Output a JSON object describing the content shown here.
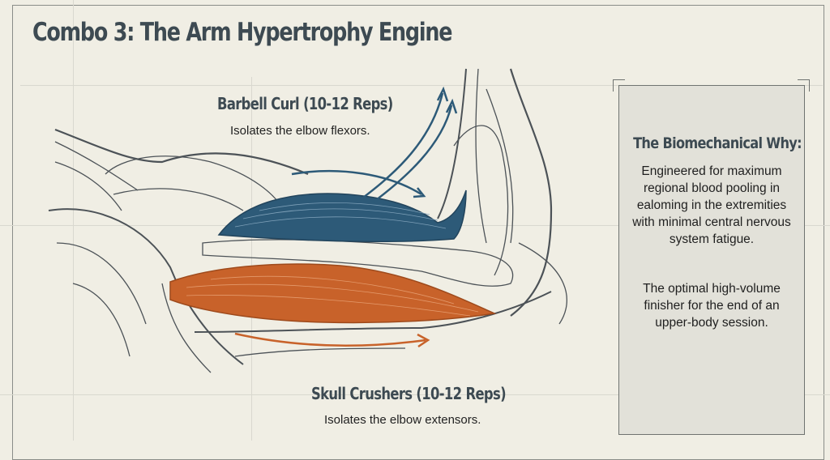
{
  "title": "Combo 3: The Arm Hypertrophy Engine",
  "flexor": {
    "label": "Barbell Curl (10-12 Reps)",
    "description": "Isolates the elbow flexors.",
    "color": "#2d5a78"
  },
  "extensor": {
    "label": "Skull Crushers (10-12 Reps)",
    "description": "Isolates the elbow extensors.",
    "color": "#c8622a"
  },
  "panel": {
    "title": "The Biomechanical Why:",
    "paragraph1": "Engineered for maximum regional blood pooling in ealoming in the extremities with minimal central nervous system fatigue.",
    "paragraph2": "The optimal high-volume finisher for the end of an upper-body session."
  }
}
